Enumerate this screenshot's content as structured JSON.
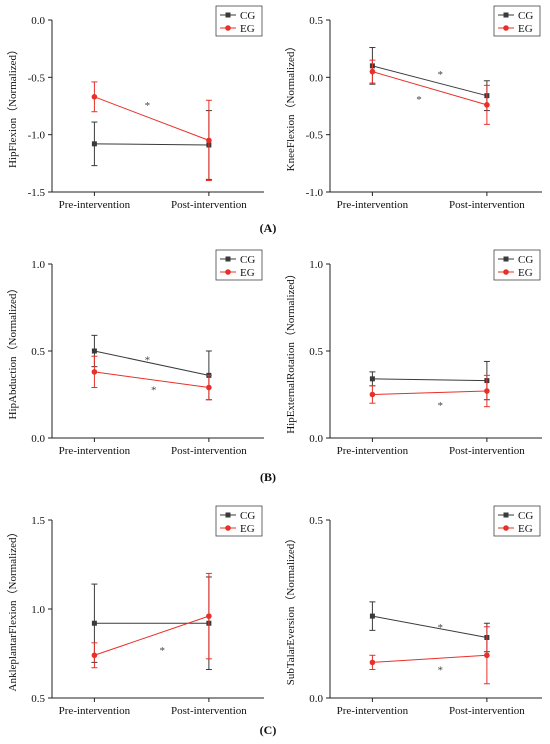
{
  "colors": {
    "CG": "#3a3a3a",
    "EG": "#e8302a"
  },
  "panel_labels": [
    "(A)",
    "(B)",
    "(C)"
  ],
  "chart_data": [
    {
      "type": "line",
      "categories": [
        "Pre-intervention",
        "Post-intervention"
      ],
      "ylabel": "HipFlexion（Normalized）",
      "ylim": [
        -1.5,
        0.0
      ],
      "yticks": [
        "-1.5",
        "-1.0",
        "-0.5",
        "0.0"
      ],
      "series": [
        {
          "name": "CG",
          "values": [
            -1.08,
            -1.09
          ],
          "errors": [
            0.19,
            0.3
          ]
        },
        {
          "name": "EG",
          "values": [
            -0.67,
            -1.05
          ],
          "errors": [
            0.13,
            0.35
          ]
        }
      ],
      "annotations": [
        {
          "text": "*",
          "x": 0.45,
          "y": -0.74
        }
      ]
    },
    {
      "type": "line",
      "categories": [
        "Pre-intervention",
        "Post-intervention"
      ],
      "ylabel": "KneeFlexion（Normalized）",
      "ylim": [
        -1.0,
        0.5
      ],
      "yticks": [
        "-1.0",
        "-0.5",
        "0.0",
        "0.5"
      ],
      "series": [
        {
          "name": "CG",
          "values": [
            0.1,
            -0.16
          ],
          "errors": [
            0.16,
            0.13
          ]
        },
        {
          "name": "EG",
          "values": [
            0.05,
            -0.24
          ],
          "errors": [
            0.1,
            0.17
          ]
        }
      ],
      "annotations": [
        {
          "text": "*",
          "x": 0.52,
          "y": 0.03
        },
        {
          "text": "*",
          "x": 0.42,
          "y": -0.19
        }
      ]
    },
    {
      "type": "line",
      "categories": [
        "Pre-intervention",
        "Post-intervention"
      ],
      "ylabel": "HipAbduction（Normalized）",
      "ylim": [
        0.0,
        1.0
      ],
      "yticks": [
        "0.0",
        "0.5",
        "1.0"
      ],
      "series": [
        {
          "name": "CG",
          "values": [
            0.5,
            0.36
          ],
          "errors": [
            0.09,
            0.14
          ]
        },
        {
          "name": "EG",
          "values": [
            0.38,
            0.29
          ],
          "errors": [
            0.09,
            0.07
          ]
        }
      ],
      "annotations": [
        {
          "text": "*",
          "x": 0.45,
          "y": 0.45
        },
        {
          "text": "*",
          "x": 0.48,
          "y": 0.28
        }
      ]
    },
    {
      "type": "line",
      "categories": [
        "Pre-intervention",
        "Post-intervention"
      ],
      "ylabel": "HipExternalRotation（Normalized）",
      "ylim": [
        0.0,
        1.0
      ],
      "yticks": [
        "0.0",
        "0.5",
        "1.0"
      ],
      "series": [
        {
          "name": "CG",
          "values": [
            0.34,
            0.33
          ],
          "errors": [
            0.04,
            0.11
          ]
        },
        {
          "name": "EG",
          "values": [
            0.25,
            0.27
          ],
          "errors": [
            0.05,
            0.09
          ]
        }
      ],
      "annotations": [
        {
          "text": "*",
          "x": 0.52,
          "y": 0.19
        }
      ]
    },
    {
      "type": "line",
      "categories": [
        "Pre-intervention",
        "Post-intervention"
      ],
      "ylabel": "AnkleplantarFlexion（Normalized）",
      "ylim": [
        0.5,
        1.5
      ],
      "yticks": [
        "0.5",
        "1.0",
        "1.5"
      ],
      "series": [
        {
          "name": "CG",
          "values": [
            0.92,
            0.92
          ],
          "errors": [
            0.22,
            0.26
          ]
        },
        {
          "name": "EG",
          "values": [
            0.74,
            0.96
          ],
          "errors": [
            0.07,
            0.24
          ]
        }
      ],
      "annotations": [
        {
          "text": "*",
          "x": 0.52,
          "y": 0.77
        }
      ]
    },
    {
      "type": "line",
      "categories": [
        "Pre-intervention",
        "Post-intervention"
      ],
      "ylabel": "SubTalarEversion（Normalized）",
      "ylim": [
        0.0,
        0.5
      ],
      "yticks": [
        "0.0",
        "0.5"
      ],
      "series": [
        {
          "name": "CG",
          "values": [
            0.23,
            0.17
          ],
          "errors": [
            0.04,
            0.04
          ]
        },
        {
          "name": "EG",
          "values": [
            0.1,
            0.12
          ],
          "errors": [
            0.02,
            0.08
          ]
        }
      ],
      "annotations": [
        {
          "text": "*",
          "x": 0.52,
          "y": 0.2
        },
        {
          "text": "*",
          "x": 0.52,
          "y": 0.08
        }
      ]
    }
  ]
}
